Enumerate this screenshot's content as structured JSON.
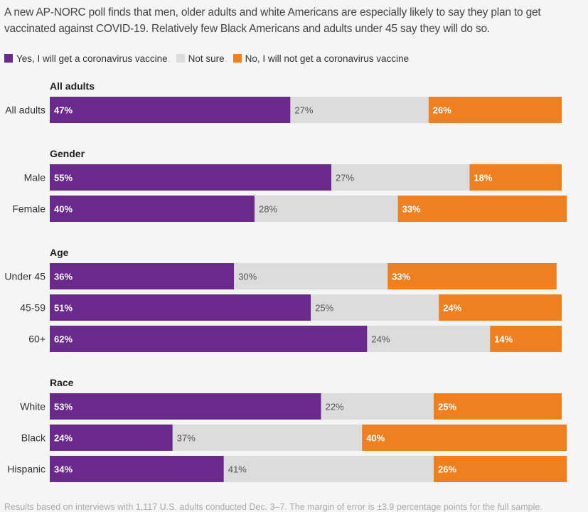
{
  "subtitle": "A new AP-NORC poll finds that men, older adults and white Americans are especially likely to say they plan to get vaccinated against COVID-19. Relatively few Black Americans and adults under 45 say they will do so.",
  "footnote": "Results based on interviews with 1,117 U.S. adults conducted Dec. 3–7. The margin of error is ±3.9 percentage points for the full sample.",
  "colors": {
    "yes": "#6a2a8b",
    "not_sure": "#dcdcdc",
    "no": "#ef801f"
  },
  "chart_data": {
    "type": "bar",
    "stacked": true,
    "orientation": "horizontal",
    "xlim": [
      0,
      100
    ],
    "legend_position": "top-left",
    "series": [
      {
        "name": "Yes, I will get a coronavirus vaccine",
        "key": "yes"
      },
      {
        "name": "Not sure",
        "key": "not_sure"
      },
      {
        "name": "No, I will not get a coronavirus vaccine",
        "key": "no"
      }
    ],
    "groups": [
      {
        "title": "All adults",
        "rows": [
          {
            "label": "All adults",
            "values": [
              47,
              27,
              26
            ]
          }
        ]
      },
      {
        "title": "Gender",
        "rows": [
          {
            "label": "Male",
            "values": [
              55,
              27,
              18
            ]
          },
          {
            "label": "Female",
            "values": [
              40,
              28,
              33
            ]
          }
        ]
      },
      {
        "title": "Age",
        "rows": [
          {
            "label": "Under 45",
            "values": [
              36,
              30,
              33
            ]
          },
          {
            "label": "45-59",
            "values": [
              51,
              25,
              24
            ]
          },
          {
            "label": "60+",
            "values": [
              62,
              24,
              14
            ]
          }
        ]
      },
      {
        "title": "Race",
        "rows": [
          {
            "label": "White",
            "values": [
              53,
              22,
              25
            ]
          },
          {
            "label": "Black",
            "values": [
              24,
              37,
              40
            ]
          },
          {
            "label": "Hispanic",
            "values": [
              34,
              41,
              26
            ]
          }
        ]
      }
    ]
  }
}
